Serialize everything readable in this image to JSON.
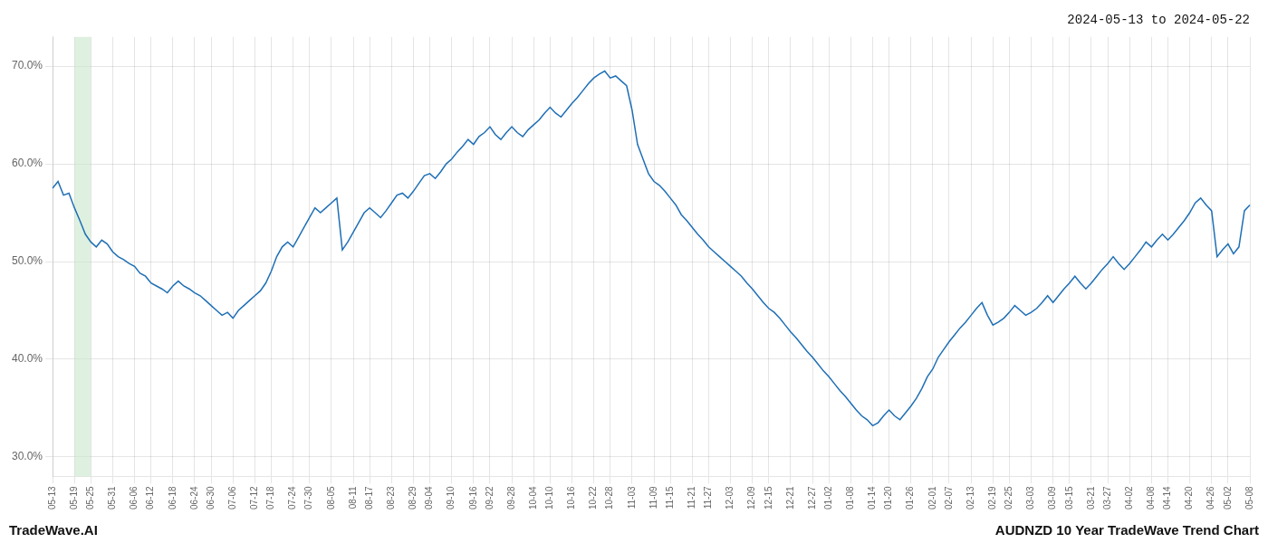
{
  "chart_data": {
    "type": "line",
    "title": "2024-05-13 to 2024-05-22",
    "annotations": [
      "TradeWave.AI",
      "AUDNZD 10 Year TradeWave Trend Chart"
    ],
    "color": "#1f6fb5",
    "grid": true,
    "ylim": [
      28.0,
      73.0
    ],
    "yticks": [
      {
        "value": 30.0,
        "label": "30.0%"
      },
      {
        "value": 40.0,
        "label": "40.0%"
      },
      {
        "value": 50.0,
        "label": "50.0%"
      },
      {
        "value": 60.0,
        "label": "60.0%"
      },
      {
        "value": 70.0,
        "label": "70.0%"
      }
    ],
    "shaded_region": {
      "start": "05-19",
      "end": "05-25",
      "color": "#c8e6c9"
    },
    "categories": [
      "05-13",
      null,
      null,
      null,
      "05-19",
      null,
      null,
      "05-25",
      null,
      null,
      null,
      "05-31",
      null,
      null,
      null,
      "06-06",
      null,
      null,
      "06-12",
      null,
      null,
      null,
      "06-18",
      null,
      null,
      null,
      "06-24",
      null,
      null,
      "06-30",
      null,
      null,
      null,
      "07-06",
      null,
      null,
      null,
      "07-12",
      null,
      null,
      "07-18",
      null,
      null,
      null,
      "07-24",
      null,
      null,
      "07-30",
      null,
      null,
      null,
      "08-05",
      null,
      null,
      null,
      "08-11",
      null,
      null,
      "08-17",
      null,
      null,
      null,
      "08-23",
      null,
      null,
      null,
      "08-29",
      null,
      null,
      "09-04",
      null,
      null,
      null,
      "09-10",
      null,
      null,
      null,
      "09-16",
      null,
      null,
      "09-22",
      null,
      null,
      null,
      "09-28",
      null,
      null,
      null,
      "10-04",
      null,
      null,
      "10-10",
      null,
      null,
      null,
      "10-16",
      null,
      null,
      null,
      "10-22",
      null,
      null,
      "10-28",
      null,
      null,
      null,
      "11-03",
      null,
      null,
      null,
      "11-09",
      null,
      null,
      "11-15",
      null,
      null,
      null,
      "11-21",
      null,
      null,
      "11-27",
      null,
      null,
      null,
      "12-03",
      null,
      null,
      null,
      "12-09",
      null,
      null,
      "12-15",
      null,
      null,
      null,
      "12-21",
      null,
      null,
      null,
      "12-27",
      null,
      null,
      "01-02",
      null,
      null,
      null,
      "01-08",
      null,
      null,
      null,
      "01-14",
      null,
      null,
      "01-20",
      null,
      null,
      null,
      "01-26",
      null,
      null,
      null,
      "02-01",
      null,
      null,
      "02-07",
      null,
      null,
      null,
      "02-13",
      null,
      null,
      null,
      "02-19",
      null,
      null,
      "02-25",
      null,
      null,
      null,
      "03-03",
      null,
      null,
      null,
      "03-09",
      null,
      null,
      "03-15",
      null,
      null,
      null,
      "03-21",
      null,
      null,
      "03-27",
      null,
      null,
      null,
      "04-02",
      null,
      null,
      null,
      "04-08",
      null,
      null,
      "04-14",
      null,
      null,
      null,
      "04-20",
      null,
      null,
      null,
      "04-26",
      null,
      null,
      "05-02",
      null,
      null,
      null,
      "05-08"
    ],
    "values": [
      57.5,
      58.2,
      56.8,
      57.0,
      55.5,
      54.2,
      52.8,
      52.0,
      51.5,
      52.2,
      51.8,
      51.0,
      50.5,
      50.2,
      49.8,
      49.5,
      48.8,
      48.5,
      47.8,
      47.5,
      47.2,
      46.8,
      47.5,
      48.0,
      47.5,
      47.2,
      46.8,
      46.5,
      46.0,
      45.5,
      45.0,
      44.5,
      44.8,
      44.2,
      45.0,
      45.5,
      46.0,
      46.5,
      47.0,
      47.8,
      49.0,
      50.5,
      51.5,
      52.0,
      51.5,
      52.5,
      53.5,
      54.5,
      55.5,
      55.0,
      55.5,
      56.0,
      56.5,
      51.2,
      52.0,
      53.0,
      54.0,
      55.0,
      55.5,
      55.0,
      54.5,
      55.2,
      56.0,
      56.8,
      57.0,
      56.5,
      57.2,
      58.0,
      58.8,
      59.0,
      58.5,
      59.2,
      60.0,
      60.5,
      61.2,
      61.8,
      62.5,
      62.0,
      62.8,
      63.2,
      63.8,
      63.0,
      62.5,
      63.2,
      63.8,
      63.2,
      62.8,
      63.5,
      64.0,
      64.5,
      65.2,
      65.8,
      65.2,
      64.8,
      65.5,
      66.2,
      66.8,
      67.5,
      68.2,
      68.8,
      69.2,
      69.5,
      68.8,
      69.0,
      68.5,
      68.0,
      65.5,
      62.0,
      60.5,
      59.0,
      58.2,
      57.8,
      57.2,
      56.5,
      55.8,
      54.8,
      54.2,
      53.5,
      52.8,
      52.2,
      51.5,
      51.0,
      50.5,
      50.0,
      49.5,
      49.0,
      48.5,
      47.8,
      47.2,
      46.5,
      45.8,
      45.2,
      44.8,
      44.2,
      43.5,
      42.8,
      42.2,
      41.5,
      40.8,
      40.2,
      39.5,
      38.8,
      38.2,
      37.5,
      36.8,
      36.2,
      35.5,
      34.8,
      34.2,
      33.8,
      33.2,
      33.5,
      34.2,
      34.8,
      34.2,
      33.8,
      34.5,
      35.2,
      36.0,
      37.0,
      38.2,
      39.0,
      40.2,
      41.0,
      41.8,
      42.5,
      43.2,
      43.8,
      44.5,
      45.2,
      45.8,
      44.5,
      43.5,
      43.8,
      44.2,
      44.8,
      45.5,
      45.0,
      44.5,
      44.8,
      45.2,
      45.8,
      46.5,
      45.8,
      46.5,
      47.2,
      47.8,
      48.5,
      47.8,
      47.2,
      47.8,
      48.5,
      49.2,
      49.8,
      50.5,
      49.8,
      49.2,
      49.8,
      50.5,
      51.2,
      52.0,
      51.5,
      52.2,
      52.8,
      52.2,
      52.8,
      53.5,
      54.2,
      55.0,
      56.0,
      56.5,
      55.8,
      55.2,
      50.5,
      51.2,
      51.8,
      50.8,
      51.5,
      55.2,
      55.8
    ]
  }
}
